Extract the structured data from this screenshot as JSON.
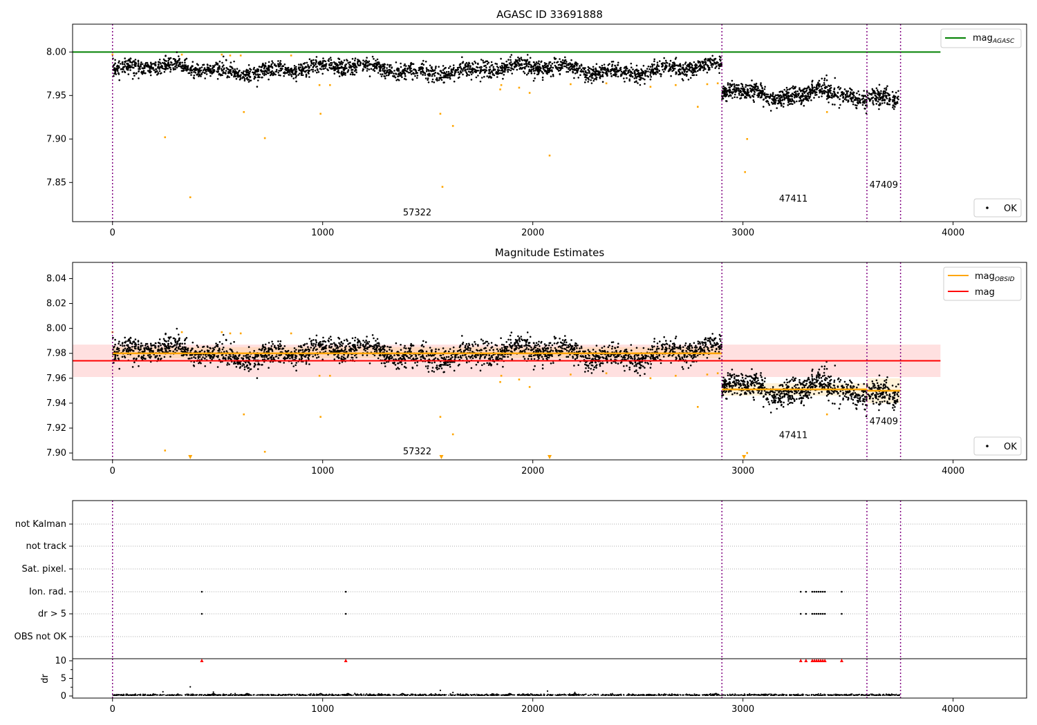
{
  "chart_data": [
    {
      "type": "scatter",
      "title": "AGASC ID 33691888",
      "xlim": [
        -190,
        4350
      ],
      "ylim": [
        7.805,
        8.032
      ],
      "x_ticks": [
        0,
        1000,
        2000,
        3000,
        4000
      ],
      "y_ticks": [
        "7.85",
        "7.90",
        "7.95",
        "8.00"
      ],
      "series": [
        {
          "name": "OK",
          "values_summary": "dense black points: mean 7.980 for x 0–2900, mean 7.950 for x 2900–3740"
        },
        {
          "name": "mag",
          "sub": "AGASC",
          "value": 8.0,
          "x_extent": [
            0,
            3940
          ]
        }
      ],
      "outliers": [
        [
          0,
          7.997
        ],
        [
          250,
          7.902
        ],
        [
          330,
          7.997
        ],
        [
          370,
          7.833
        ],
        [
          520,
          7.997
        ],
        [
          560,
          7.996
        ],
        [
          610,
          7.996
        ],
        [
          625,
          7.931
        ],
        [
          725,
          7.901
        ],
        [
          850,
          7.996
        ],
        [
          985,
          7.962
        ],
        [
          990,
          7.929
        ],
        [
          1035,
          7.962
        ],
        [
          1560,
          7.929
        ],
        [
          1570,
          7.845
        ],
        [
          1620,
          7.915
        ],
        [
          1845,
          7.957
        ],
        [
          1850,
          7.962
        ],
        [
          1935,
          7.959
        ],
        [
          1985,
          7.953
        ],
        [
          2080,
          7.881
        ],
        [
          2180,
          7.963
        ],
        [
          2350,
          7.964
        ],
        [
          2560,
          7.96
        ],
        [
          2680,
          7.962
        ],
        [
          2785,
          7.937
        ],
        [
          2830,
          7.963
        ],
        [
          2880,
          7.964
        ],
        [
          3010,
          7.862
        ],
        [
          3020,
          7.9
        ],
        [
          3400,
          7.931
        ]
      ],
      "obsid_boundaries": [
        0,
        2900,
        3590,
        3750
      ],
      "obsid_labels": [
        {
          "text": "57322",
          "x": 1450,
          "y": 7.812
        },
        {
          "text": "47411",
          "x": 3240,
          "y": 7.828
        },
        {
          "text": "47409",
          "x": 3670,
          "y": 7.844
        }
      ],
      "legends": {
        "upper": "mag",
        "upper_sub": "AGASC",
        "lower": "OK"
      }
    },
    {
      "type": "scatter",
      "title": "Magnitude Estimates",
      "xlim": [
        -190,
        4350
      ],
      "ylim": [
        7.8945,
        8.053
      ],
      "x_ticks": [
        0,
        1000,
        2000,
        3000,
        4000
      ],
      "y_ticks": [
        "7.90",
        "7.92",
        "7.94",
        "7.96",
        "7.98",
        "8.00",
        "8.02",
        "8.04"
      ],
      "series": [
        {
          "name": "mag",
          "sub": "OBSID",
          "segments": [
            {
              "x": [
                0,
                2900
              ],
              "y": 7.98,
              "band": [
                7.976,
                7.985
              ]
            },
            {
              "x": [
                2900,
                3590
              ],
              "y": 7.951,
              "band": [
                7.946,
                7.956
              ]
            },
            {
              "x": [
                3590,
                3750
              ],
              "y": 7.95,
              "band": [
                7.94,
                7.96
              ]
            }
          ]
        },
        {
          "name": "mag",
          "value": 7.974,
          "band": [
            7.961,
            7.987
          ],
          "x_extent": [
            -190,
            3940
          ]
        },
        {
          "name": "OK",
          "values_summary": "same as top panel"
        }
      ],
      "clipped_markers": [
        370,
        1565,
        2080,
        3005
      ],
      "obsid_labels": [
        {
          "text": "57322",
          "x": 1450,
          "y": 7.899
        },
        {
          "text": "47411",
          "x": 3240,
          "y": 7.912
        },
        {
          "text": "47409",
          "x": 3670,
          "y": 7.923
        }
      ],
      "legends": {
        "upper": [
          "mag",
          "mag"
        ],
        "upper_sub": [
          "OBSID",
          ""
        ],
        "lower": "OK"
      }
    },
    {
      "type": "scatter",
      "title": "",
      "xlim": [
        -190,
        4350
      ],
      "categories": [
        "not Kalman",
        "not track",
        "Sat. pixel.",
        "Ion. rad.",
        "dr > 5",
        "OBS not OK"
      ],
      "flags": {
        "Ion. rad.": [
          425,
          1110,
          3275,
          3300,
          3330,
          3340,
          3350,
          3360,
          3370,
          3380,
          3390,
          3470
        ],
        "dr > 5": [
          425,
          1110,
          3275,
          3300,
          3330,
          3340,
          3350,
          3360,
          3370,
          3380,
          3390,
          3470
        ]
      }
    },
    {
      "type": "line",
      "title": "",
      "ylabel": "dr",
      "xlim": [
        -190,
        4350
      ],
      "y_ticks": [
        "0",
        "5",
        "10"
      ],
      "x_ticks": [
        0,
        1000,
        2000,
        3000,
        4000
      ],
      "dr_spikes": [
        [
          240,
          1.2
        ],
        [
          370,
          2.6
        ],
        [
          480,
          1.1
        ],
        [
          1560,
          1.6
        ],
        [
          1620,
          1.0
        ],
        [
          2070,
          1.4
        ],
        [
          2200,
          1.0
        ]
      ],
      "dr_high": [
        425,
        1110,
        3275,
        3300,
        3330,
        3340,
        3350,
        3360,
        3370,
        3380,
        3390,
        3470
      ]
    }
  ]
}
